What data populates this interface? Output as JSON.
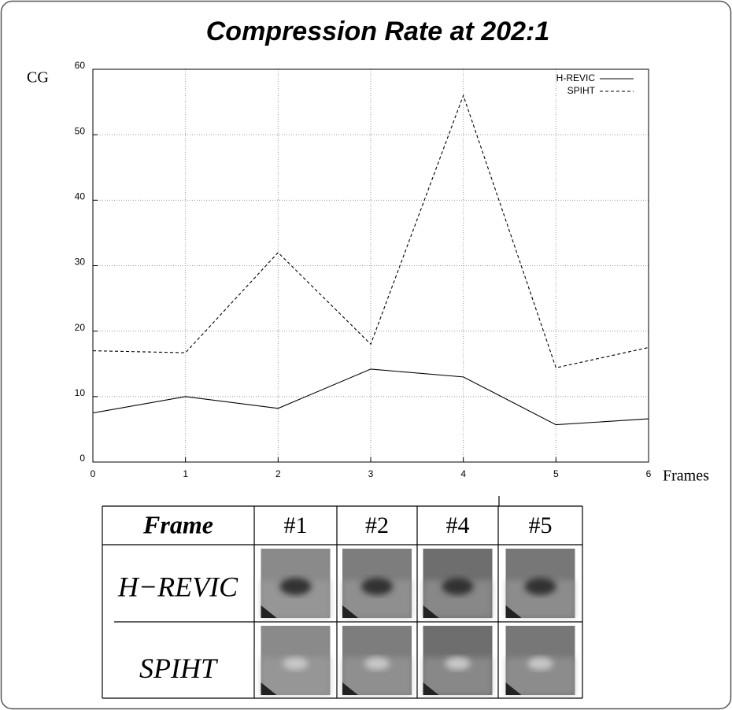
{
  "chart_data": {
    "type": "line",
    "title": "Compression Rate at 202:1",
    "y_label": "CG",
    "x_label": "Frames",
    "x": [
      0,
      1,
      2,
      3,
      4,
      5,
      6
    ],
    "series": [
      {
        "name": "H-REVIC",
        "color": "#000000",
        "dash": "solid",
        "values": [
          7.5,
          10,
          8.2,
          14.2,
          13,
          5.7,
          6.6
        ]
      },
      {
        "name": "SPIHT",
        "color": "#000000",
        "dash": "dashed",
        "values": [
          17,
          16.7,
          32,
          18,
          56,
          14.4,
          17.5
        ]
      }
    ],
    "xlim": [
      0,
      6
    ],
    "ylim": [
      0,
      60
    ],
    "xticks": [
      0,
      1,
      2,
      3,
      4,
      5,
      6
    ],
    "yticks": [
      0,
      10,
      20,
      30,
      40,
      50,
      60
    ],
    "grid": true,
    "legend": "upper right"
  },
  "table": {
    "header": [
      "Frame",
      "#1",
      "#2",
      "#4",
      "#5"
    ],
    "rows": [
      "H−REVIC",
      "SPIHT"
    ]
  }
}
